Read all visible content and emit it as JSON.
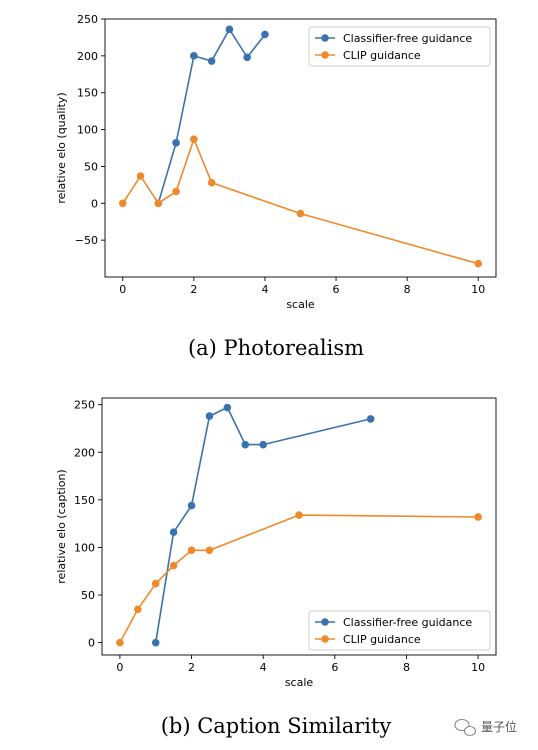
{
  "colors": {
    "cfg": "#3a72b0",
    "clip": "#ef8a2c"
  },
  "watermark": {
    "text": "量子位",
    "icon": "wechat-icon"
  },
  "chart_data": [
    {
      "type": "line",
      "caption": "(a)  Photorealism",
      "xlabel": "scale",
      "ylabel": "relative elo (quality)",
      "xlim": [
        -0.5,
        10.5
      ],
      "ylim": [
        -100,
        250
      ],
      "xticks": [
        0,
        2,
        4,
        6,
        8,
        10
      ],
      "yticks": [
        -50,
        0,
        50,
        100,
        150,
        200,
        250
      ],
      "legend_position": "upper-right",
      "series": [
        {
          "name": "Classifier-free guidance",
          "color": "#3a72b0",
          "x": [
            1,
            1.5,
            2,
            2.5,
            3,
            3.5,
            4
          ],
          "y": [
            0,
            82,
            200,
            193,
            236,
            198,
            229
          ]
        },
        {
          "name": "CLIP guidance",
          "color": "#ef8a2c",
          "x": [
            0,
            0.5,
            1,
            1.5,
            2,
            2.5,
            5,
            10
          ],
          "y": [
            0,
            37,
            0,
            16,
            87,
            28,
            -14,
            -82
          ]
        }
      ]
    },
    {
      "type": "line",
      "caption": "(b)  Caption Similarity",
      "xlabel": "scale",
      "ylabel": "relative elo (caption)",
      "xlim": [
        -0.5,
        10.5
      ],
      "ylim": [
        -13,
        257
      ],
      "xticks": [
        0,
        2,
        4,
        6,
        8,
        10
      ],
      "yticks": [
        0,
        50,
        100,
        150,
        200,
        250
      ],
      "legend_position": "lower-right",
      "series": [
        {
          "name": "Classifier-free guidance",
          "color": "#3a72b0",
          "x": [
            1,
            1.5,
            2,
            2.5,
            3,
            3.5,
            4,
            7
          ],
          "y": [
            0,
            116,
            144,
            238,
            247,
            208,
            208,
            235
          ]
        },
        {
          "name": "CLIP guidance",
          "color": "#ef8a2c",
          "x": [
            0,
            0.5,
            1,
            1.5,
            2,
            2.5,
            5,
            10
          ],
          "y": [
            0,
            35,
            62,
            81,
            97,
            97,
            134,
            132
          ]
        }
      ]
    }
  ]
}
